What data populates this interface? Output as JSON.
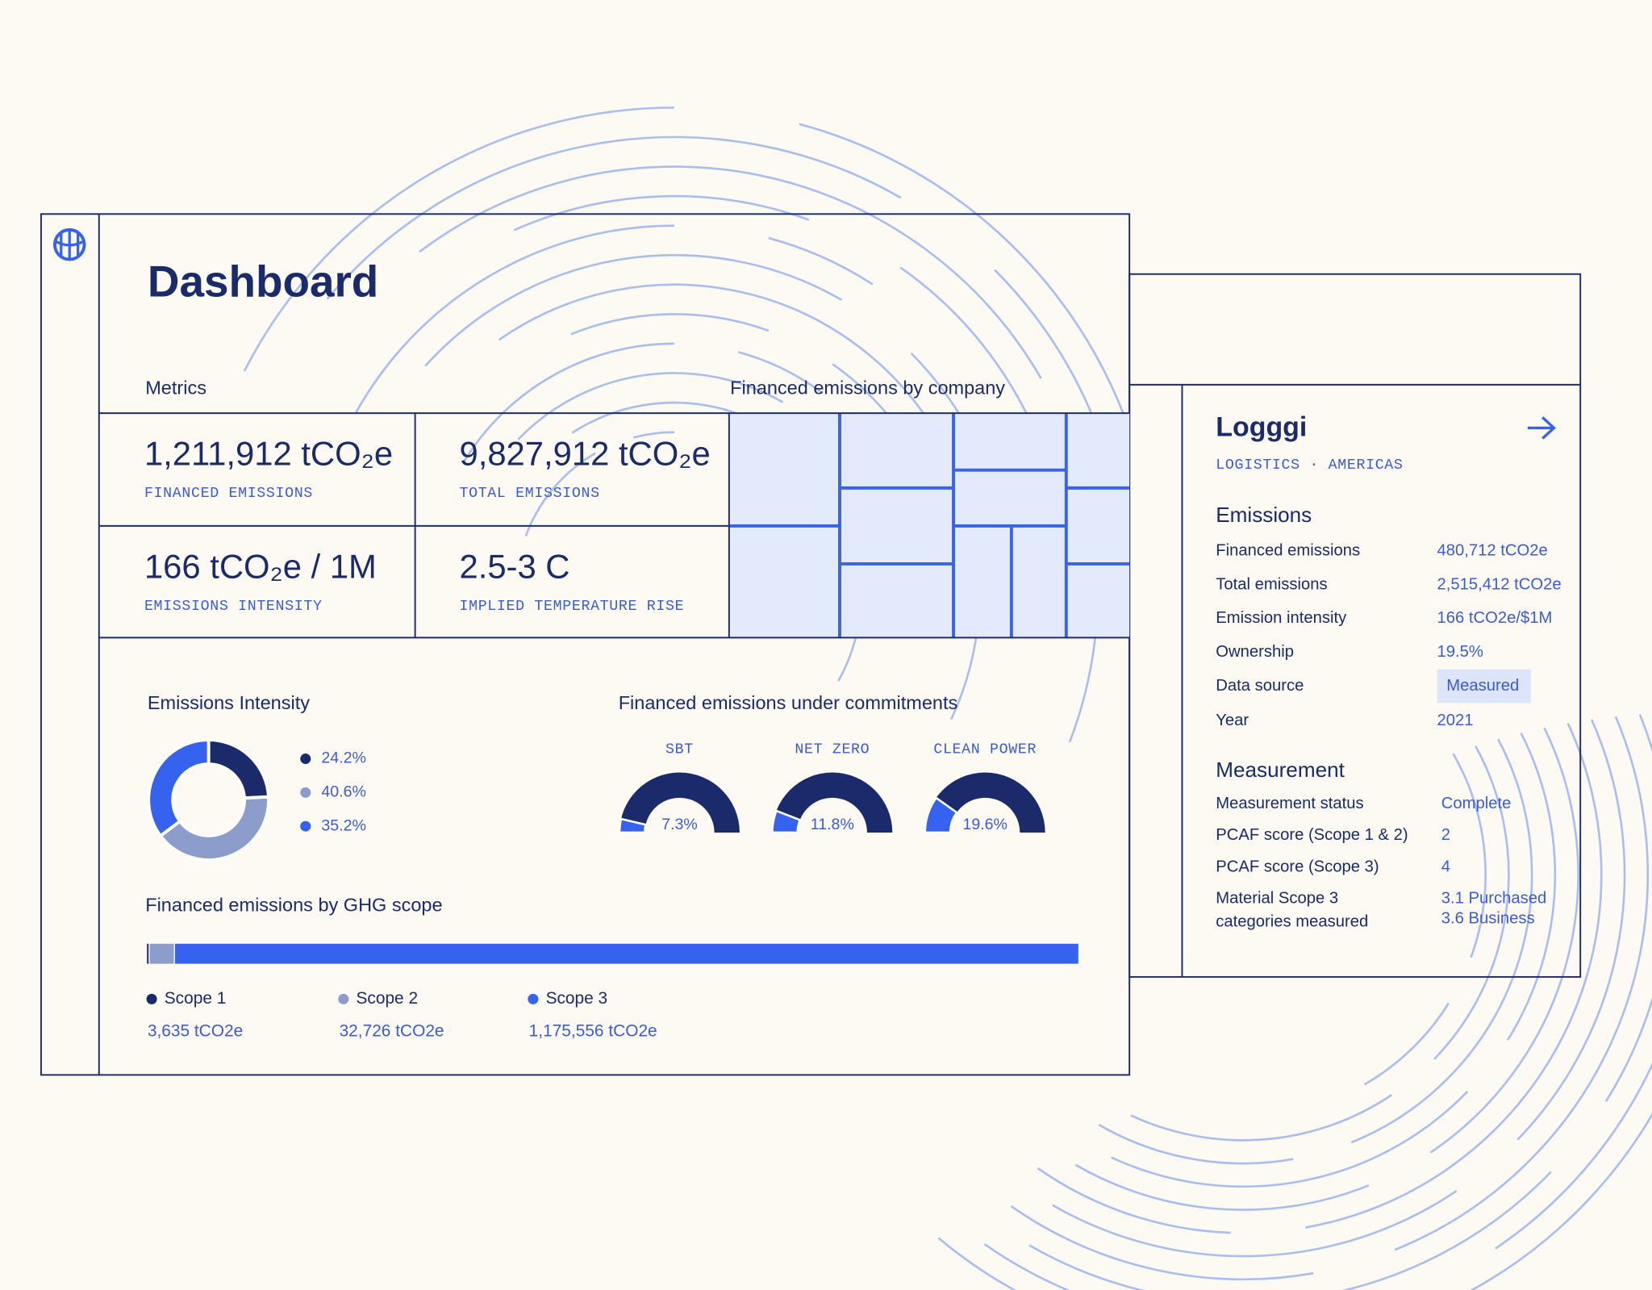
{
  "dashboard": {
    "title": "Dashboard",
    "metrics_title": "Metrics",
    "treemap_title": "Financed emissions by company",
    "metrics": [
      {
        "value": "1,211,912 tCO₂e",
        "label": "FINANCED EMISSIONS"
      },
      {
        "value": "9,827,912 tCO₂e",
        "label": "TOTAL EMISSIONS"
      },
      {
        "value": "166 tCO₂e / 1M",
        "label": "EMISSIONS INTENSITY"
      },
      {
        "value": "2.5-3 C",
        "label": "IMPLIED TEMPERATURE RISE"
      }
    ]
  },
  "emissions_intensity": {
    "title": "Emissions Intensity",
    "values": [
      24.2,
      40.6,
      35.2
    ],
    "value_labels": [
      "24.2%",
      "40.6%",
      "35.2%"
    ],
    "colors": [
      "#1b2a6b",
      "#8c9dcc",
      "#3563f0"
    ]
  },
  "commitments": {
    "title": "Financed emissions under commitments",
    "categories": [
      "SBT",
      "NET ZERO",
      "CLEAN POWER"
    ],
    "values": [
      7.3,
      11.8,
      19.6
    ],
    "value_labels": [
      "7.3%",
      "11.8%",
      "19.6%"
    ],
    "colors": [
      "#3563f0",
      "#1b2a6b"
    ]
  },
  "ghg_scope": {
    "title": "Financed emissions  by GHG scope",
    "series": [
      {
        "name": "Scope 1",
        "value": 3635,
        "value_label": "3,635 tCO2e",
        "color": "#1b2a6b"
      },
      {
        "name": "Scope 2",
        "value": 32726,
        "value_label": "32,726 tCO2e",
        "color": "#8c9dcc"
      },
      {
        "name": "Scope 3",
        "value": 1175556,
        "value_label": "1,175,556 tCO2e",
        "color": "#3563f0"
      }
    ]
  },
  "company": {
    "name": "Logggi",
    "subtitle": "LOGISTICS · AMERICAS",
    "emissions": {
      "title": "Emissions",
      "rows": [
        [
          "Financed emissions",
          "480,712 tCO2e"
        ],
        [
          "Total emissions",
          "2,515,412 tCO2e"
        ],
        [
          "Emission intensity",
          "166 tCO2e/$1M"
        ],
        [
          "Ownership",
          "19.5%"
        ],
        [
          "Data source",
          "Measured"
        ],
        [
          "Year",
          "2021"
        ]
      ]
    },
    "measurement": {
      "title": "Measurement",
      "rows": [
        [
          "Measurement status",
          "Complete"
        ],
        [
          "PCAF score (Scope 1 & 2)",
          "2"
        ],
        [
          "PCAF score (Scope 3)",
          "4"
        ],
        [
          [
            "Material Scope 3",
            "categories measured"
          ],
          [
            "3.1 Purchased",
            "3.6 Business"
          ]
        ]
      ]
    }
  }
}
